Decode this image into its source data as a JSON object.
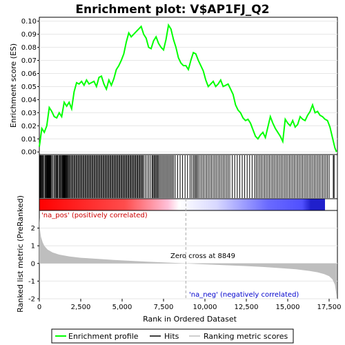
{
  "chart_data": {
    "type": "line",
    "title": "Enrichment plot: V$AP1FJ_Q2",
    "es_panel": {
      "ylabel": "Enrichment score (ES)",
      "ylim": [
        -0.002,
        0.103
      ],
      "yticks": [
        0.0,
        0.01,
        0.02,
        0.03,
        0.04,
        0.05,
        0.06,
        0.07,
        0.08,
        0.09,
        0.1
      ],
      "ytick_labels": [
        "0.00",
        "0.01",
        "0.02",
        "0.03",
        "0.04",
        "0.05",
        "0.06",
        "0.07",
        "0.08",
        "0.09",
        "0.10"
      ],
      "series": [
        {
          "name": "Enrichment profile",
          "color": "#00ff00",
          "x": [
            0,
            150,
            300,
            450,
            600,
            750,
            900,
            1050,
            1200,
            1350,
            1500,
            1650,
            1800,
            1950,
            2100,
            2250,
            2400,
            2550,
            2700,
            2850,
            3000,
            3150,
            3300,
            3450,
            3600,
            3750,
            3900,
            4050,
            4200,
            4350,
            4500,
            4650,
            4800,
            4950,
            5100,
            5250,
            5400,
            5550,
            5700,
            5850,
            6000,
            6150,
            6300,
            6450,
            6600,
            6750,
            6900,
            7050,
            7200,
            7350,
            7500,
            7650,
            7800,
            7950,
            8100,
            8250,
            8400,
            8550,
            8700,
            8850,
            9000,
            9150,
            9300,
            9450,
            9600,
            9750,
            9900,
            10050,
            10200,
            10350,
            10500,
            10650,
            10800,
            10950,
            11100,
            11250,
            11400,
            11550,
            11700,
            11850,
            12000,
            12150,
            12300,
            12450,
            12600,
            12750,
            12900,
            13050,
            13200,
            13350,
            13500,
            13650,
            13800,
            13950,
            14100,
            14250,
            14400,
            14550,
            14700,
            14850,
            15000,
            15150,
            15300,
            15450,
            15600,
            15750,
            15900,
            16050,
            16200,
            16350,
            16500,
            16650,
            16800,
            16950,
            17100,
            17250,
            17400,
            17550,
            17700,
            17850,
            17950
          ],
          "y": [
            0.004,
            0.018,
            0.015,
            0.02,
            0.034,
            0.031,
            0.027,
            0.026,
            0.03,
            0.027,
            0.038,
            0.035,
            0.038,
            0.033,
            0.046,
            0.053,
            0.052,
            0.054,
            0.051,
            0.055,
            0.052,
            0.053,
            0.054,
            0.05,
            0.057,
            0.058,
            0.052,
            0.048,
            0.055,
            0.051,
            0.056,
            0.063,
            0.066,
            0.07,
            0.075,
            0.084,
            0.091,
            0.088,
            0.09,
            0.092,
            0.094,
            0.096,
            0.09,
            0.087,
            0.08,
            0.079,
            0.085,
            0.088,
            0.083,
            0.08,
            0.078,
            0.086,
            0.097,
            0.094,
            0.086,
            0.08,
            0.072,
            0.068,
            0.066,
            0.066,
            0.063,
            0.07,
            0.076,
            0.075,
            0.07,
            0.066,
            0.062,
            0.055,
            0.05,
            0.052,
            0.054,
            0.05,
            0.052,
            0.055,
            0.05,
            0.051,
            0.052,
            0.048,
            0.044,
            0.036,
            0.032,
            0.03,
            0.026,
            0.024,
            0.025,
            0.022,
            0.017,
            0.012,
            0.01,
            0.013,
            0.015,
            0.011,
            0.019,
            0.027,
            0.022,
            0.018,
            0.015,
            0.012,
            0.008,
            0.025,
            0.022,
            0.02,
            0.024,
            0.019,
            0.021,
            0.027,
            0.025,
            0.024,
            0.028,
            0.031,
            0.036,
            0.03,
            0.031,
            0.028,
            0.027,
            0.025,
            0.024,
            0.019,
            0.011,
            0.003,
            0.0
          ]
        }
      ]
    },
    "hits_panel": {
      "legend_name": "Hits",
      "color": "#000000",
      "hits": [
        20,
        60,
        100,
        140,
        180,
        230,
        290,
        350,
        400,
        440,
        480,
        510,
        540,
        570,
        600,
        630,
        660,
        700,
        750,
        820,
        900,
        960,
        1010,
        1060,
        1110,
        1170,
        1230,
        1280,
        1330,
        1380,
        1420,
        1460,
        1500,
        1540,
        1580,
        1620,
        1660,
        1700,
        1750,
        1800,
        1860,
        1920,
        1980,
        2040,
        2100,
        2160,
        2220,
        2280,
        2340,
        2400,
        2460,
        2520,
        2580,
        2640,
        2700,
        2760,
        2820,
        2880,
        2940,
        3000,
        3060,
        3120,
        3180,
        3240,
        3300,
        3360,
        3420,
        3480,
        3540,
        3600,
        3660,
        3720,
        3780,
        3840,
        3900,
        3960,
        4020,
        4080,
        4140,
        4200,
        4260,
        4320,
        4380,
        4440,
        4500,
        4560,
        4620,
        4680,
        4740,
        4800,
        4860,
        4920,
        4980,
        5040,
        5100,
        5160,
        5220,
        5280,
        5340,
        5400,
        5460,
        5520,
        5580,
        5640,
        5700,
        5760,
        5820,
        5880,
        5940,
        6000,
        6060,
        6120,
        6180,
        6240,
        6300,
        6400,
        6500,
        6600,
        6700,
        6800,
        6860,
        6920,
        6980,
        7040,
        7100,
        7160,
        7220,
        7300,
        7380,
        7460,
        7540,
        7620,
        7700,
        7780,
        7860,
        7940,
        8020,
        8100,
        8200,
        8350,
        8500,
        8650,
        8800,
        8950,
        9100,
        9200,
        9300,
        9380,
        9450,
        9520,
        9600,
        9700,
        9800,
        9900,
        10000,
        10100,
        10200,
        10300,
        10400,
        10500,
        10600,
        10700,
        10800,
        10900,
        11000,
        11100,
        11200,
        11300,
        11400,
        11500,
        11650,
        11800,
        11950,
        12100,
        12250,
        12400,
        12550,
        12700,
        12850,
        13000,
        13100,
        13200,
        13300,
        13400,
        13500,
        13600,
        13700,
        13800,
        13900,
        14000,
        14100,
        14200,
        14300,
        14400,
        14500,
        14600,
        14700,
        14800,
        14900,
        15000,
        15100,
        15200,
        15300,
        15400,
        15500,
        15600,
        15700,
        15800,
        15900,
        16000,
        16100,
        16200,
        16300,
        16400,
        16500,
        16600,
        16700,
        16800,
        16900,
        17000,
        17100,
        17200,
        17300,
        17400,
        17500,
        17750,
        17800
      ]
    },
    "metric_panel": {
      "ylabel": "Ranked list metric (PreRanked)",
      "legend_name": "Ranking metric scores",
      "color": "#bebebe",
      "ylim": [
        -2,
        3
      ],
      "yticks": [
        -2,
        -1,
        0,
        1,
        2
      ],
      "ytick_labels": [
        "-2",
        "-1",
        "0",
        "1",
        "2"
      ],
      "x": [
        0,
        50,
        100,
        200,
        300,
        500,
        800,
        1200,
        1800,
        2500,
        3500,
        4500,
        5500,
        6500,
        7500,
        8200,
        8849,
        9500,
        10500,
        11500,
        12500,
        13500,
        14500,
        15500,
        16300,
        16800,
        17200,
        17500,
        17700,
        17850,
        17950
      ],
      "y": [
        2.6,
        1.85,
        1.5,
        1.2,
        1.0,
        0.78,
        0.62,
        0.5,
        0.4,
        0.32,
        0.26,
        0.2,
        0.15,
        0.1,
        0.06,
        0.03,
        0.0,
        -0.03,
        -0.07,
        -0.11,
        -0.15,
        -0.2,
        -0.26,
        -0.33,
        -0.42,
        -0.5,
        -0.6,
        -0.72,
        -0.9,
        -1.2,
        -1.85
      ]
    },
    "xaxis": {
      "label": "Rank in Ordered Dataset",
      "xlim": [
        0,
        18000
      ],
      "ticks": [
        0,
        2500,
        5000,
        7500,
        10000,
        12500,
        15000,
        17500
      ],
      "tick_labels": [
        "0",
        "2,500",
        "5,000",
        "7,500",
        "10,000",
        "12,500",
        "15,000",
        "17,500"
      ]
    },
    "annotations": {
      "pos_label": "'na_pos' (positively correlated)",
      "neg_label": "'na_neg' (negatively correlated)",
      "zero_cross_label": "Zero cross at 8849",
      "zero_cross_rank": 8849
    },
    "legend": {
      "placement": "bottom",
      "items": [
        "Enrichment profile",
        "Hits",
        "Ranking metric scores"
      ]
    },
    "colors": {
      "profile": "#00ff00",
      "hits": "#000000",
      "metric_fill": "#bebebe",
      "pos_label": "#cc0000",
      "neg_label": "#0000cc",
      "bar_red": "#ff0000",
      "bar_blue": "#0000ff"
    }
  }
}
